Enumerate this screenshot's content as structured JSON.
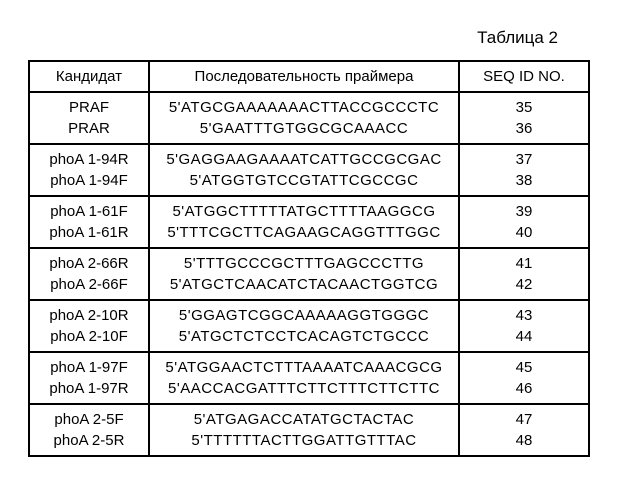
{
  "caption": "Таблица 2",
  "headers": {
    "col1": "Кандидат",
    "col2": "Последовательность праймера",
    "col3": "SEQ ID NO."
  },
  "rows": [
    {
      "name": "PRAF",
      "seq": "5'ATGCGAAAAAAACTTACCGCCCTC",
      "id": "35"
    },
    {
      "name": "PRAR",
      "seq": "5'GAATTTGTGGCGCAAACC",
      "id": "36"
    },
    {
      "name": "phoA 1-94R",
      "seq": "5'GAGGAAGAAAATCATTGCCGCGAC",
      "id": "37"
    },
    {
      "name": "phoA 1-94F",
      "seq": "5'ATGGTGTCCGTATTCGCCGC",
      "id": "38"
    },
    {
      "name": "phoA 1-61F",
      "seq": "5'ATGGCTTTTTATGCTTTTAAGGCG",
      "id": "39"
    },
    {
      "name": "phoA 1-61R",
      "seq": "5'TTTCGCTTCAGAAGCAGGTTTGGC",
      "id": "40"
    },
    {
      "name": "phoA 2-66R",
      "seq": "5'TTTGCCCGCTTTGAGCCCTTG",
      "id": "41"
    },
    {
      "name": "phoA 2-66F",
      "seq": "5'ATGCTCAACATCTACAACTGGTCG",
      "id": "42"
    },
    {
      "name": "phoA 2-10R",
      "seq": "5'GGAGTCGGCAAAAAGGTGGGC",
      "id": "43"
    },
    {
      "name": "phoA 2-10F",
      "seq": "5'ATGCTCTCCTCACAGTCTGCCC",
      "id": "44"
    },
    {
      "name": "phoA 1-97F",
      "seq": "5'ATGGAACTCTTTAAAATCAAACGCG",
      "id": "45"
    },
    {
      "name": "phoA 1-97R",
      "seq": "5'AACCACGATTTCTTCTTTCTTCTTC",
      "id": "46"
    },
    {
      "name": "phoA 2-5F",
      "seq": "5'ATGAGACCATATGCTACTAC",
      "id": "47"
    },
    {
      "name": "phoA 2-5R",
      "seq": "5'TTTTTTACTTGGATTGTTTAC",
      "id": "48"
    }
  ]
}
